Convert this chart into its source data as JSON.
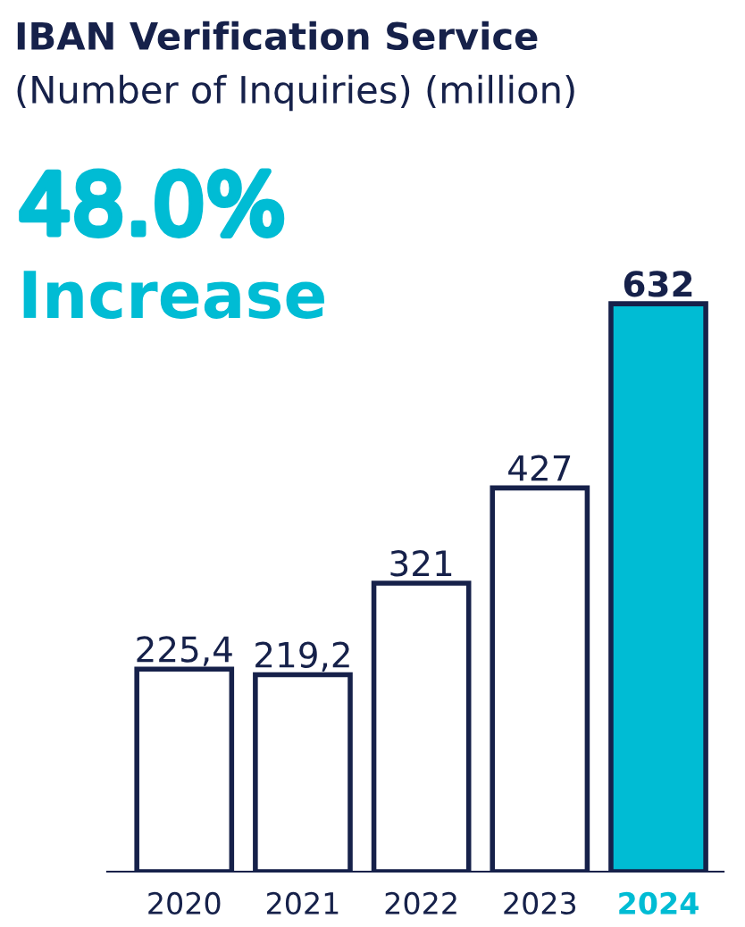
{
  "chart_data": {
    "type": "bar",
    "title": "IBAN Verification Service",
    "subtitle": "(Number of Inquiries) (million)",
    "categories": [
      "2020",
      "2021",
      "2022",
      "2023",
      "2024"
    ],
    "values": [
      225.4,
      219.2,
      321,
      427,
      632
    ],
    "value_labels": [
      "225,4",
      "219,2",
      "321",
      "427",
      "632"
    ],
    "colors": [
      "#ffffff",
      "#ffffff",
      "#ffffff",
      "#ffffff",
      "#00bcd4"
    ],
    "annotations": [
      "48.0%",
      "Increase"
    ],
    "grid": false,
    "legend": false
  }
}
